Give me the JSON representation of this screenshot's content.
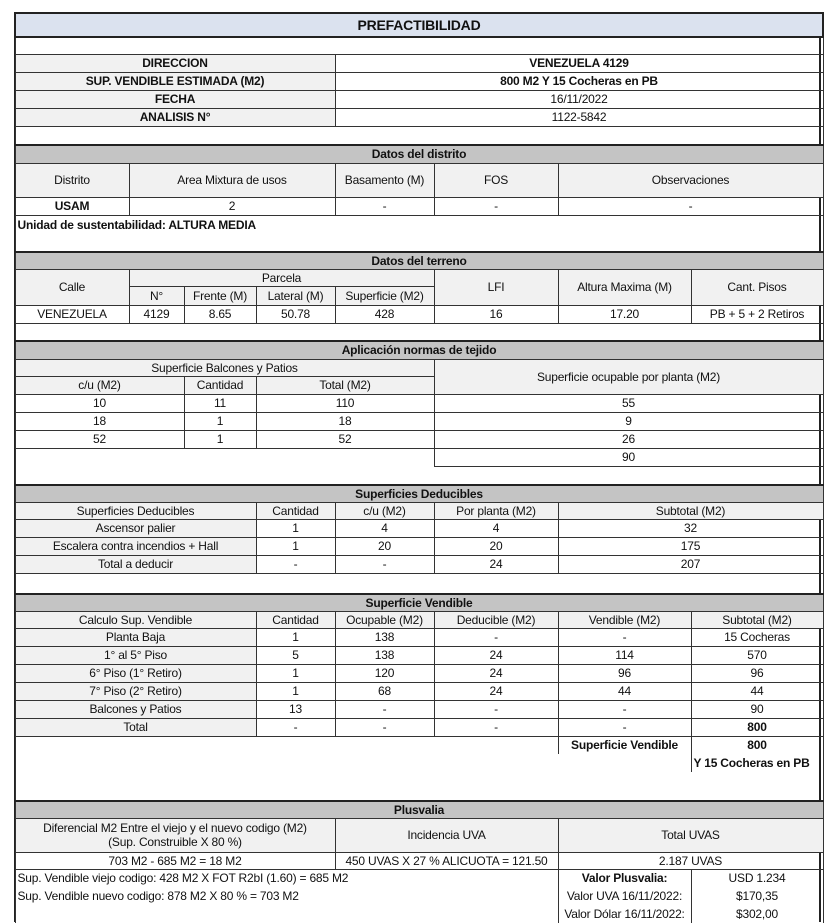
{
  "title": "PREFACTIBILIDAD",
  "info": [
    {
      "label": "DIRECCION",
      "value": "VENEZUELA 4129"
    },
    {
      "label": "SUP. VENDIBLE ESTIMADA (M2)",
      "value": "800 M2 Y 15 Cocheras en PB"
    },
    {
      "label": "FECHA",
      "value": "16/11/2022"
    },
    {
      "label": "ANALISIS N°",
      "value": "1122-5842"
    }
  ],
  "distrito": {
    "header": "Datos del distrito",
    "columns": [
      "Distrito",
      "Area Mixtura de usos",
      "Basamento (M)",
      "FOS",
      "Observaciones"
    ],
    "row": [
      "USAM",
      "2",
      "-",
      "-",
      "-"
    ],
    "unidad": "Unidad de sustentabilidad: ALTURA MEDIA"
  },
  "terreno": {
    "header": "Datos del terreno",
    "calle": "Calle",
    "parcela": "Parcela",
    "sub_columns": [
      "N°",
      "Frente (M)",
      "Lateral (M)",
      "Superficie (M2)"
    ],
    "lfi": "LFI",
    "altura": "Altura Maxima (M)",
    "pisos": "Cant. Pisos",
    "row": [
      "VENEZUELA",
      "4129",
      "8.65",
      "50.78",
      "428",
      "16",
      "17.20",
      "PB + 5 + 2 Retiros"
    ]
  },
  "tejido": {
    "header": "Aplicación normas de tejido",
    "balcones_header": "Superficie Balcones y Patios",
    "columns": [
      "c/u (M2)",
      "Cantidad",
      "Total (M2)"
    ],
    "ocupable_header": "Superficie ocupable por planta (M2)",
    "rows": [
      [
        "10",
        "11",
        "110"
      ],
      [
        "18",
        "1",
        "18"
      ],
      [
        "52",
        "1",
        "52"
      ]
    ],
    "ocupable": [
      "55",
      "9",
      "26"
    ],
    "ocupable_total": "90"
  },
  "deducibles": {
    "header": "Superficies Deducibles",
    "columns": [
      "Superficies Deducibles",
      "Cantidad",
      "c/u (M2)",
      "Por planta (M2)",
      "Subtotal (M2)"
    ],
    "rows": [
      [
        "Ascensor palier",
        "1",
        "4",
        "4",
        "32"
      ],
      [
        "Escalera contra incendios + Hall",
        "1",
        "20",
        "20",
        "175"
      ],
      [
        "Total a deducir",
        "-",
        "-",
        "24",
        "207"
      ]
    ]
  },
  "vendible": {
    "header": "Superficie Vendible",
    "columns": [
      "Calculo Sup. Vendible",
      "Cantidad",
      "Ocupable (M2)",
      "Deducible (M2)",
      "Vendible (M2)",
      "Subtotal (M2)"
    ],
    "rows": [
      [
        "Planta Baja",
        "1",
        "138",
        "-",
        "-",
        "15 Cocheras"
      ],
      [
        "1° al 5° Piso",
        "5",
        "138",
        "24",
        "114",
        "570"
      ],
      [
        "6° Piso (1° Retiro)",
        "1",
        "120",
        "24",
        "96",
        "96"
      ],
      [
        "7° Piso (2° Retiro)",
        "1",
        "68",
        "24",
        "44",
        "44"
      ],
      [
        "Balcones y Patios",
        "13",
        "-",
        "-",
        "-",
        "90"
      ],
      [
        "Total",
        "-",
        "-",
        "-",
        "-",
        "800"
      ]
    ],
    "total_label": "Superficie Vendible",
    "total_value": "800",
    "cocheras": "Y 15 Cocheras en PB"
  },
  "plusvalia": {
    "header": "Plusvalia",
    "diferencial": [
      "Diferencial M2 Entre el viejo y el nuevo codigo (M2)",
      "(Sup. Construible X 80 %)"
    ],
    "incidencia": "Incidencia UVA",
    "total": "Total UVAS",
    "values": [
      "703 M2 - 685 M2 = 18 M2",
      "450 UVAS X 27 % ALICUOTA = 121.50",
      "2.187  UVAS"
    ],
    "notes": [
      "Sup. Vendible viejo codigo: 428 M2 X FOT R2bI (1.60) = 685 M2",
      "Sup. Vendible nuevo codigo: 878 M2 X 80 % = 703 M2"
    ],
    "summary": [
      {
        "label": "Valor Plusvalia:",
        "value": "USD 1.234"
      },
      {
        "label": "Valor UVA 16/11/2022:",
        "value": "$170,35"
      },
      {
        "label": "Valor Dólar 16/11/2022:",
        "value": "$302,00"
      }
    ]
  }
}
